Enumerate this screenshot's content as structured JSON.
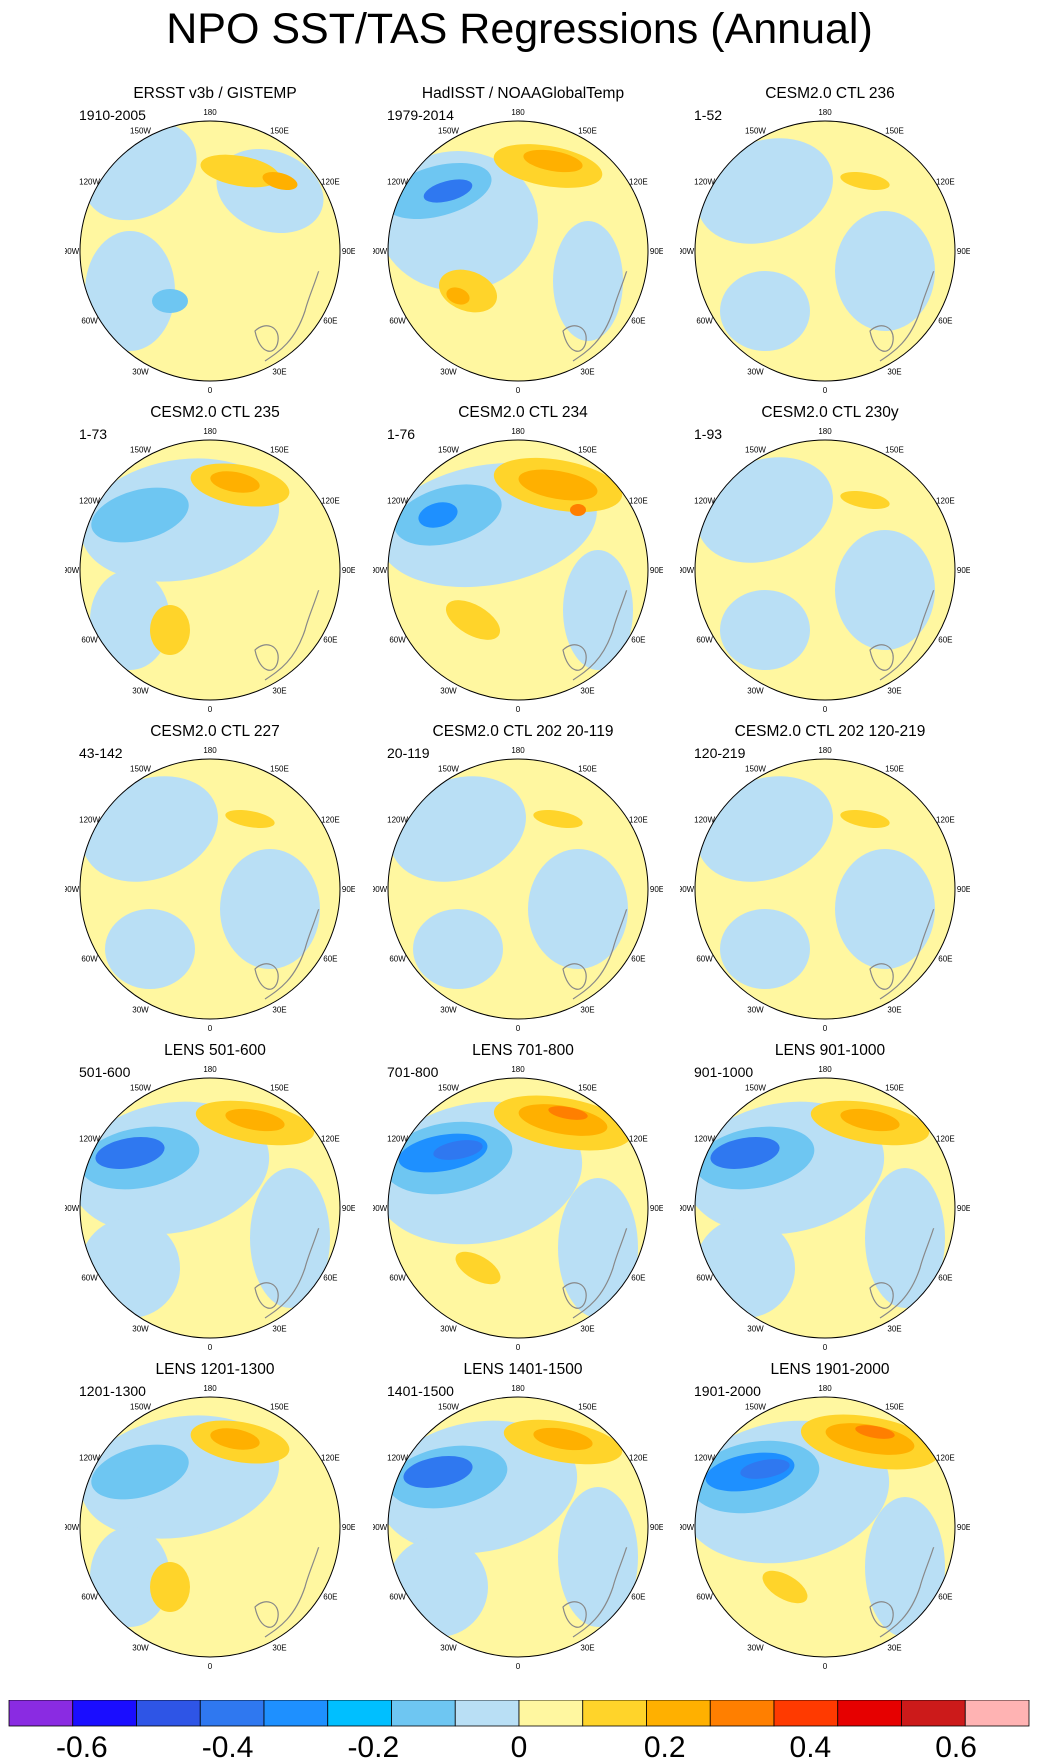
{
  "title": "NPO SST/TAS Regressions (Annual)",
  "longitude_labels": [
    "180",
    "150E",
    "120E",
    "90E",
    "60E",
    "30E",
    "0",
    "30W",
    "60W",
    "90W",
    "120W",
    "150W"
  ],
  "panels": [
    {
      "title": "ERSST v3b / GISTEMP",
      "period": "1910-2005",
      "pattern": "obs1"
    },
    {
      "title": "HadISST / NOAAGlobalTemp",
      "period": "1979-2014",
      "pattern": "obs2"
    },
    {
      "title": "CESM2.0 CTL 236",
      "period": "1-52",
      "pattern": "weak"
    },
    {
      "title": "CESM2.0 CTL 235",
      "period": "1-73",
      "pattern": "moderate"
    },
    {
      "title": "CESM2.0 CTL 234",
      "period": "1-76",
      "pattern": "strong"
    },
    {
      "title": "CESM2.0 CTL 230y",
      "period": "1-93",
      "pattern": "weak"
    },
    {
      "title": "CESM2.0 CTL 227",
      "period": "43-142",
      "pattern": "weak"
    },
    {
      "title": "CESM2.0 CTL 202 20-119",
      "period": "20-119",
      "pattern": "weak"
    },
    {
      "title": "CESM2.0 CTL 202 120-219",
      "period": "120-219",
      "pattern": "weak"
    },
    {
      "title": "LENS 501-600",
      "period": "501-600",
      "pattern": "lens"
    },
    {
      "title": "LENS 701-800",
      "period": "701-800",
      "pattern": "lens_strong"
    },
    {
      "title": "LENS 901-1000",
      "period": "901-1000",
      "pattern": "lens"
    },
    {
      "title": "LENS 1201-1300",
      "period": "1201-1300",
      "pattern": "moderate"
    },
    {
      "title": "LENS 1401-1500",
      "period": "1401-1500",
      "pattern": "lens"
    },
    {
      "title": "LENS 1901-2000",
      "period": "1901-2000",
      "pattern": "lens_strong"
    }
  ],
  "colorbar": {
    "colors": [
      "#8a2be2",
      "#1a0dff",
      "#2e55e6",
      "#2f78f0",
      "#1e90ff",
      "#00bfff",
      "#6ec6f2",
      "#b9dff5",
      "#fff7a0",
      "#ffd42a",
      "#ffb000",
      "#ff7f00",
      "#ff3a00",
      "#e60000",
      "#cc1a1a",
      "#ffb3b3"
    ],
    "labels": [
      "-0.6",
      "-0.4",
      "-0.2",
      "0",
      "0.2",
      "0.4",
      "0.6"
    ],
    "label_values": [
      -0.6,
      -0.4,
      -0.2,
      0,
      0.2,
      0.4,
      0.6
    ],
    "min": -0.7,
    "max": 0.7
  },
  "colors": {
    "neg_light": "#b9dff5",
    "neg_medium": "#6ec6f2",
    "neg_strong": "#2f78f0",
    "neg_stronger": "#1e90ff",
    "pos_light": "#fff7a0",
    "pos_medium": "#ffd42a",
    "pos_strong": "#ffb000",
    "pos_stronger": "#ff7f00",
    "land_outline": "#888888"
  }
}
